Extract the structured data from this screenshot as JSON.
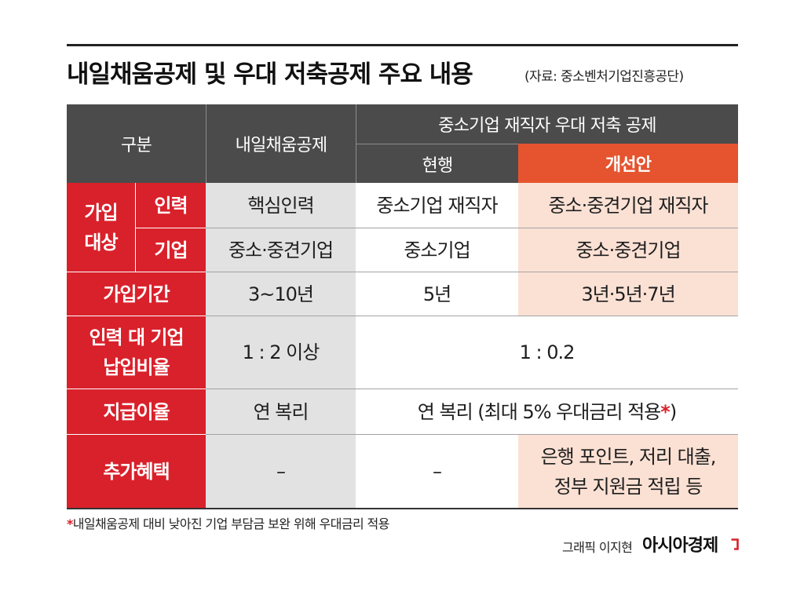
{
  "title": "내일채움공제 및 우대 저축공제 주요 내용",
  "source": "(자료: 중소벤처기업진흥공단)",
  "table": {
    "header": {
      "category": "구분",
      "tomorrow_fund": "내일채움공제",
      "savings_group": "중소기업 재직자 우대 저축 공제",
      "current": "현행",
      "improved": "개선안"
    },
    "join_target": {
      "label_line1": "가입",
      "label_line2": "대상",
      "workforce": {
        "label": "인력",
        "tomorrow_fund": "핵심인력",
        "current": "중소기업 재직자",
        "improved": "중소·중견기업 재직자"
      },
      "company": {
        "label": "기업",
        "tomorrow_fund": "중소·중견기업",
        "current": "중소기업",
        "improved": "중소·중견기업"
      }
    },
    "period": {
      "label": "가입기간",
      "tomorrow_fund": "3~10년",
      "current": "5년",
      "improved": "3년·5년·7년"
    },
    "contribution_ratio": {
      "label_line1": "인력 대 기업",
      "label_line2": "납입비율",
      "tomorrow_fund": "1 : 2 이상",
      "savings_both": "1 : 0.2"
    },
    "interest": {
      "label": "지급이율",
      "tomorrow_fund": "연 복리",
      "savings_both_text": "연 복리 (최대 5% 우대금리 적용",
      "savings_both_mark": "*",
      "savings_both_close": ")"
    },
    "benefits": {
      "label": "추가혜택",
      "tomorrow_fund": "–",
      "current": "–",
      "improved_line1": "은행 포인트, 저리 대출,",
      "improved_line2": "정부 지원금 적립 등"
    }
  },
  "footnote": {
    "mark": "*",
    "text": "내일채움공제 대비 낮아진 기업 부담금 보완 위해 우대금리 적용"
  },
  "credit": {
    "graphic": "그래픽 이지현",
    "brand": "아시아경제",
    "brand_icon": "red-corner-logo-icon"
  },
  "colors": {
    "header_bg": "#4b4b4b",
    "label_red": "#d9212b",
    "improved_header_bg": "#e5542f",
    "tomorrow_fund_bg": "#e2e2e2",
    "improved_col_bg": "#fbe1d4"
  }
}
